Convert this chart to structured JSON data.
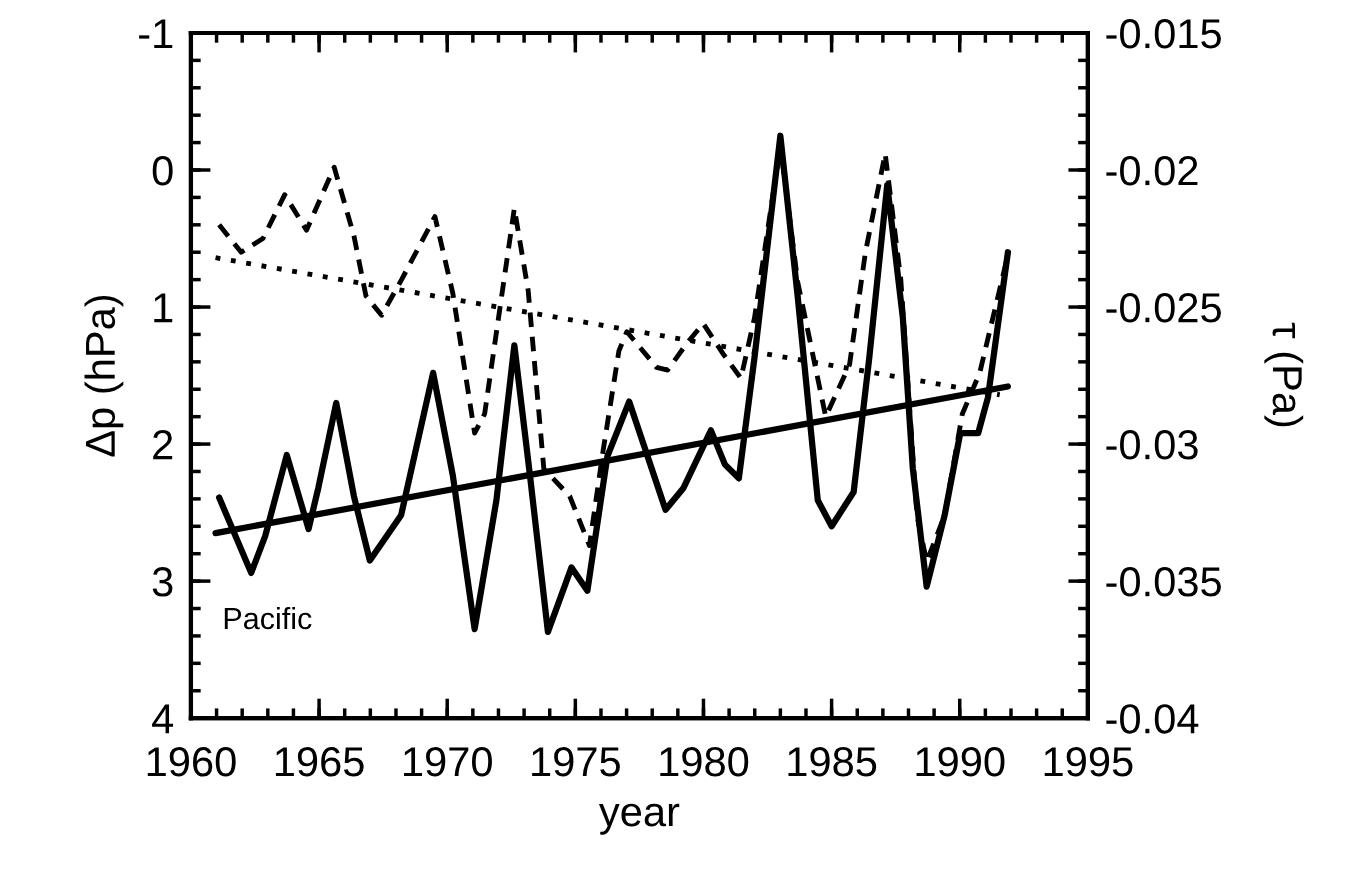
{
  "chart_data": {
    "type": "line",
    "xlabel": "year",
    "ylabel": "Δp (hPa)",
    "y2label": "τ (Pa)",
    "annotations": [
      "Pacific"
    ],
    "xlim": [
      1960,
      1995
    ],
    "xticks": [
      1960,
      1965,
      1970,
      1975,
      1980,
      1985,
      1990,
      1995
    ],
    "ylim": [
      4,
      -1
    ],
    "yticks": [
      -1,
      0,
      1,
      2,
      3,
      4
    ],
    "y2lim": [
      -0.04,
      -0.015
    ],
    "y2ticks": [
      -0.04,
      -0.035,
      -0.03,
      -0.025,
      -0.02,
      -0.015
    ],
    "grid": false,
    "marker": "none",
    "series": [
      {
        "color": "#000000",
        "line_style": "solid",
        "x": [
          1961.1,
          1962.35,
          1962.9,
          1963.74,
          1964.59,
          1964.97,
          1965.67,
          1966.36,
          1966.98,
          1968.2,
          1969.45,
          1970.22,
          1971.07,
          1971.92,
          1972.62,
          1973.23,
          1973.93,
          1974.85,
          1975.47,
          1976.25,
          1977.1,
          1978.52,
          1979.22,
          1980.29,
          1980.84,
          1981.38,
          1981.99,
          1983.0,
          1983.68,
          1984.46,
          1985.0,
          1985.86,
          1986.47,
          1987.17,
          1987.78,
          1988.17,
          1988.71,
          1989.41,
          1990.02,
          1990.72,
          1991.1,
          1991.88
        ],
        "values": [
          2.39,
          2.94,
          2.67,
          2.08,
          2.62,
          2.32,
          1.7,
          2.38,
          2.85,
          2.52,
          1.48,
          2.23,
          3.35,
          2.41,
          1.28,
          2.23,
          3.37,
          2.9,
          3.07,
          2.09,
          1.69,
          2.48,
          2.32,
          1.9,
          2.15,
          2.25,
          1.37,
          -0.25,
          0.93,
          2.41,
          2.6,
          2.35,
          1.37,
          0.11,
          1.08,
          2.18,
          3.04,
          2.52,
          1.92,
          1.92,
          1.66,
          0.6
        ]
      },
      {
        "color": "#000000",
        "line_style": "solid",
        "x": [
          1960.96,
          1991.88
        ],
        "values": [
          2.65,
          1.58
        ]
      },
      {
        "color": "#000000",
        "line_style": "dashed",
        "axis": "y2",
        "x": [
          1961.1,
          1961.96,
          1962.81,
          1963.66,
          1964.51,
          1965.59,
          1966.36,
          1966.83,
          1967.44,
          1968.22,
          1969.52,
          1970.22,
          1971.07,
          1971.46,
          1972.62,
          1973.16,
          1973.77,
          1974.78,
          1975.55,
          1976.09,
          1976.7,
          1977.01,
          1978.17,
          1978.6,
          1979.37,
          1979.99,
          1980.76,
          1981.46,
          1981.99,
          1983.0,
          1983.68,
          1984.77,
          1985.7,
          1986.32,
          1987.09,
          1987.7,
          1988.33,
          1988.71,
          1989.41,
          1990.1,
          1990.78,
          1991.88
        ],
        "values": [
          -0.022,
          -0.023,
          -0.0225,
          -0.0209,
          -0.0222,
          -0.0199,
          -0.0224,
          -0.0246,
          -0.0253,
          -0.024,
          -0.0217,
          -0.0245,
          -0.0296,
          -0.0289,
          -0.0214,
          -0.0244,
          -0.0309,
          -0.0319,
          -0.0337,
          -0.0302,
          -0.0266,
          -0.0259,
          -0.0272,
          -0.0273,
          -0.0263,
          -0.0256,
          -0.0267,
          -0.0276,
          -0.0254,
          -0.0191,
          -0.0241,
          -0.029,
          -0.0271,
          -0.023,
          -0.0194,
          -0.024,
          -0.0326,
          -0.0343,
          -0.0326,
          -0.0289,
          -0.0274,
          -0.0231
        ]
      },
      {
        "color": "#000000",
        "line_style": "dotted",
        "axis": "y2",
        "x": [
          1960.96,
          1991.56
        ],
        "values": [
          -0.0232,
          -0.0282
        ]
      }
    ]
  }
}
